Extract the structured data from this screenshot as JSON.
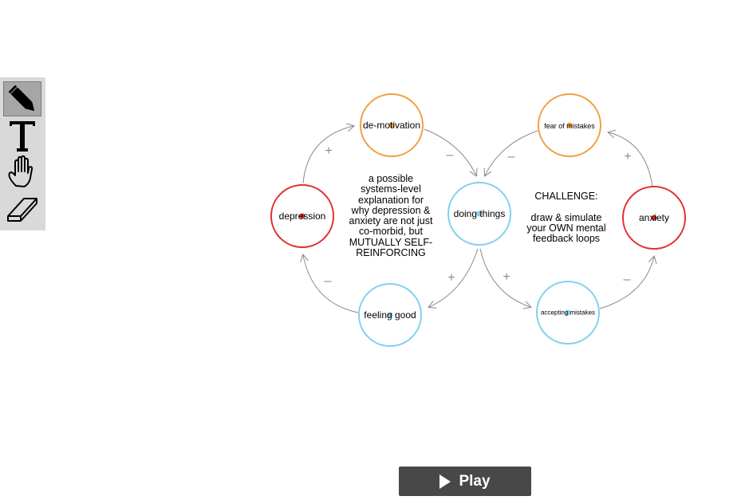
{
  "toolbar": {
    "tools": [
      {
        "name": "pencil",
        "icon": "pencil-icon",
        "active": true
      },
      {
        "name": "text",
        "icon": "text-icon",
        "active": false
      },
      {
        "name": "hand",
        "icon": "hand-icon",
        "active": false
      },
      {
        "name": "eraser",
        "icon": "eraser-icon",
        "active": false
      }
    ]
  },
  "colors": {
    "orange": "#f0a040",
    "red": "#e03030",
    "blue": "#80d0f0",
    "arrow": "#8a8a8a"
  },
  "nodes": {
    "demotivation": "de-motivation",
    "fear_of_mistakes": "fear of mistakes",
    "depression": "depression",
    "doing_things": "doing things",
    "anxiety": "anxiety",
    "feeling_good": "feeling good",
    "accepting_mistakes": "accepting mistakes"
  },
  "notes": {
    "explanation": "a possible\nsystems-level\nexplanation for\nwhy depression &\nanxiety are not just\nco-morbid, but\nMUTUALLY SELF-\nREINFORCING",
    "challenge": "CHALLENGE:\n\ndraw & simulate\nyour OWN mental\nfeedback loops"
  },
  "signs": {
    "plus": "+",
    "minus": "–"
  },
  "play_button": {
    "label": "Play"
  }
}
